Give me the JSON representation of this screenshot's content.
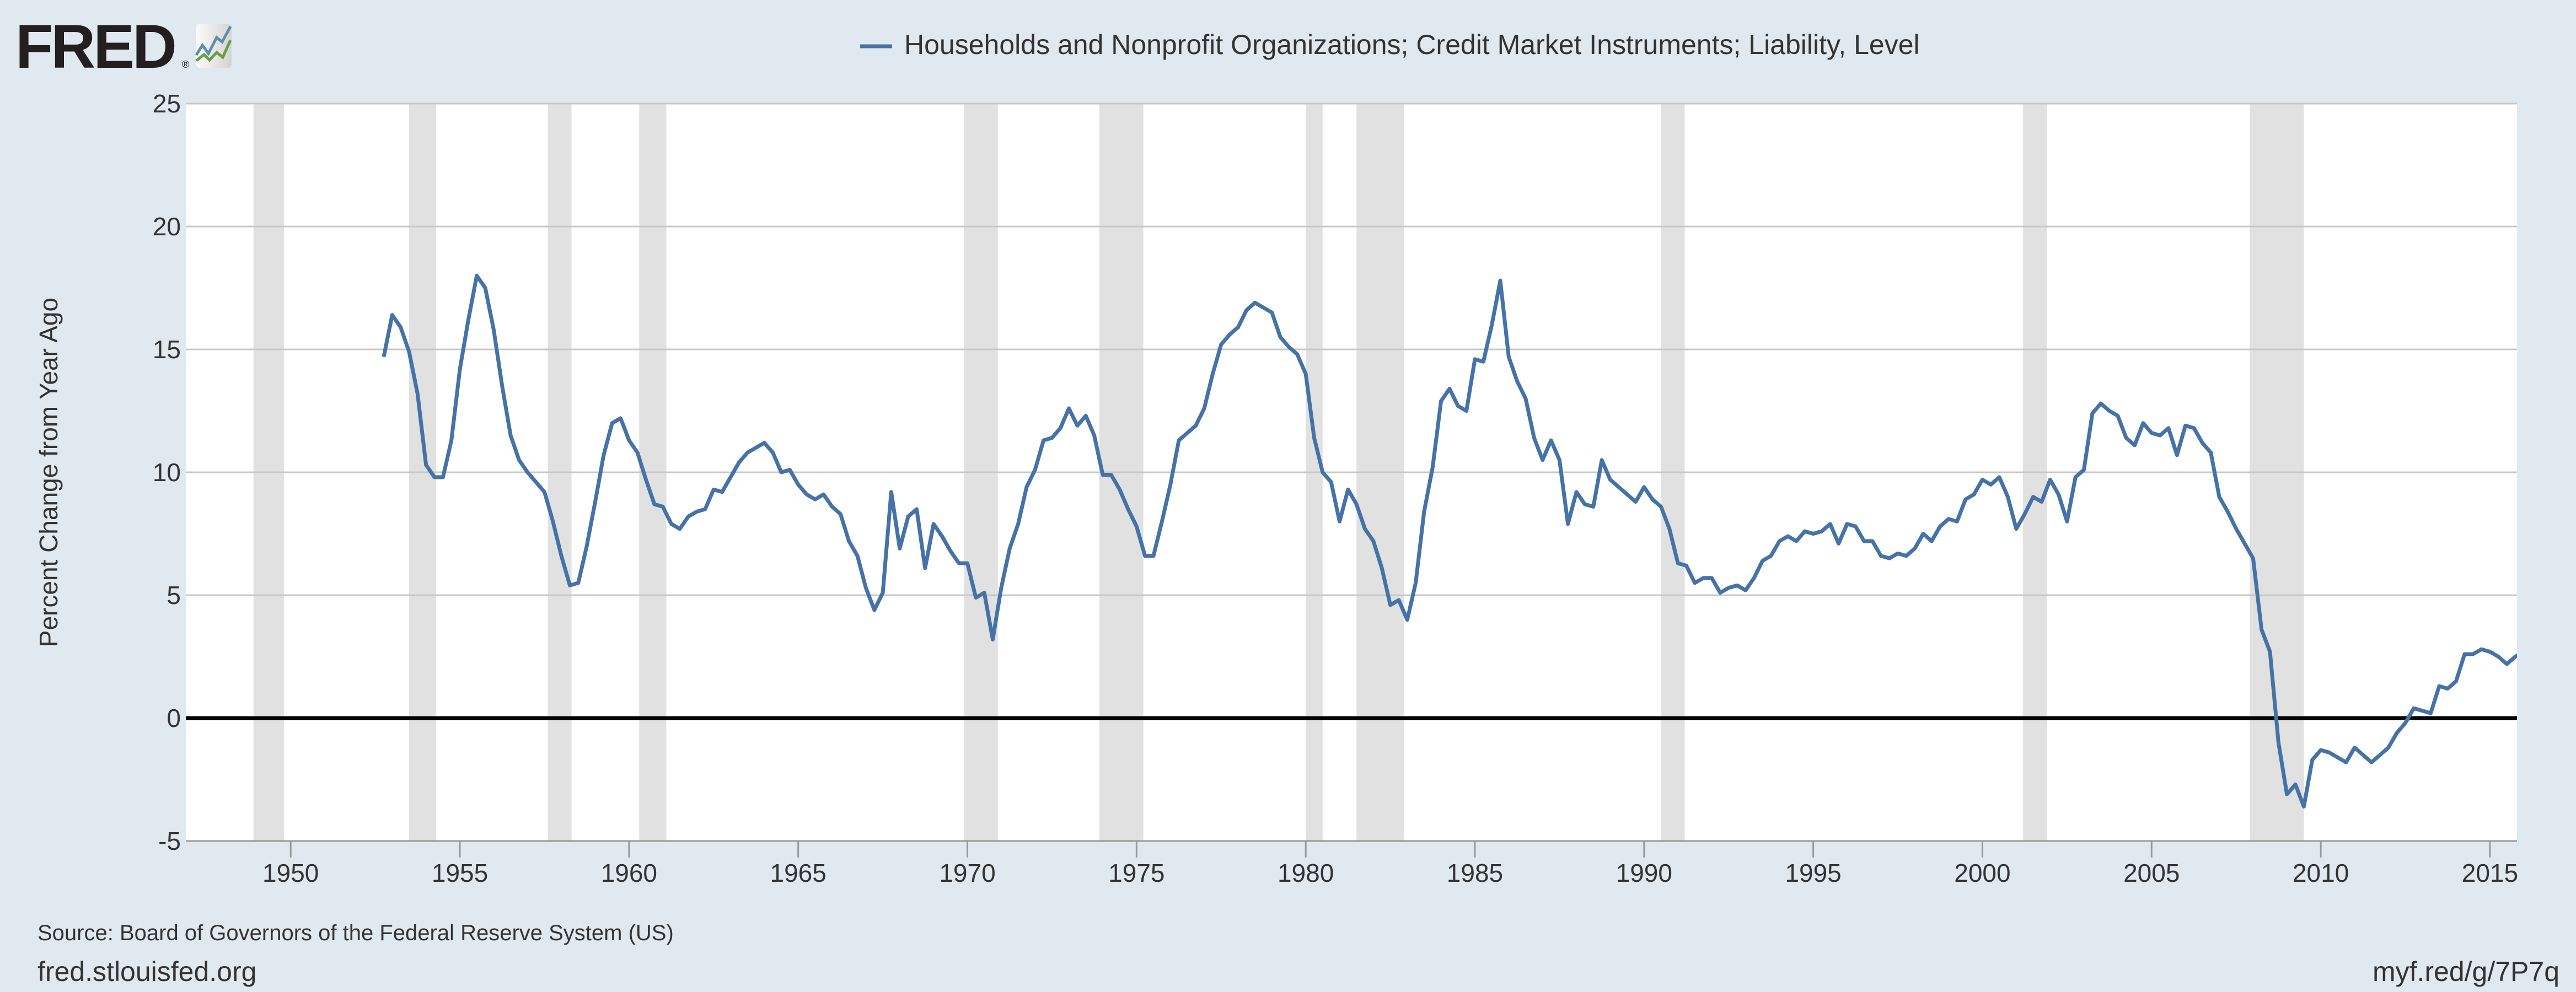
{
  "logo": {
    "text": "FRED",
    "registered": "®"
  },
  "colors": {
    "background": "#e1e9f0",
    "plot": "#ffffff",
    "series": "#4572a7",
    "recession": "#e1e1e1",
    "grid": "#c8c8c8",
    "zero_line": "#000000"
  },
  "source": "Source: Board of Governors of the Federal Reserve System (US)",
  "footer": {
    "left": "fred.stlouisfed.org",
    "right": "myf.red/g/7P7q"
  },
  "chart_data": {
    "type": "line",
    "title": "Households and Nonprofit Organizations; Credit Market Instruments; Liability, Level",
    "legend": [
      "Households and Nonprofit Organizations; Credit Market Instruments; Liability, Level"
    ],
    "legend_position": "top-center",
    "xlabel": "",
    "ylabel": "Percent Change from Year Ago",
    "xlim": [
      1946.9,
      2015.8
    ],
    "ylim": [
      -5,
      25
    ],
    "grid": true,
    "x_ticks": [
      "1950",
      "1955",
      "1960",
      "1965",
      "1970",
      "1975",
      "1980",
      "1985",
      "1990",
      "1995",
      "2000",
      "2005",
      "2010",
      "2015"
    ],
    "y_ticks": [
      "-5",
      "0",
      "5",
      "10",
      "15",
      "20",
      "25"
    ],
    "recessions": [
      [
        1948.9,
        1949.8
      ],
      [
        1953.5,
        1954.3
      ],
      [
        1957.6,
        1958.3
      ],
      [
        1960.3,
        1961.1
      ],
      [
        1969.9,
        1970.9
      ],
      [
        1973.9,
        1975.2
      ],
      [
        1980.0,
        1980.5
      ],
      [
        1981.5,
        1982.9
      ],
      [
        1990.5,
        1991.2
      ],
      [
        2001.2,
        2001.9
      ],
      [
        2007.9,
        2009.5
      ]
    ],
    "series": [
      {
        "name": "Households and Nonprofit Organizations; Credit Market Instruments; Liability, Level",
        "start": 1952.75,
        "step": 0.25,
        "values": [
          14.7,
          16.4,
          15.9,
          14.9,
          13.2,
          10.3,
          9.8,
          9.8,
          11.3,
          14.2,
          16.2,
          18.0,
          17.5,
          15.8,
          13.5,
          11.5,
          10.5,
          10.0,
          9.6,
          9.2,
          8.0,
          6.6,
          5.4,
          5.5,
          7.0,
          8.8,
          10.7,
          12.0,
          12.2,
          11.3,
          10.8,
          9.7,
          8.7,
          8.6,
          7.9,
          7.7,
          8.2,
          8.4,
          8.5,
          9.3,
          9.2,
          9.8,
          10.4,
          10.8,
          11.0,
          11.2,
          10.8,
          10.0,
          10.1,
          9.5,
          9.1,
          8.9,
          9.1,
          8.6,
          8.3,
          7.2,
          6.6,
          5.3,
          4.4,
          5.1,
          9.2,
          6.9,
          8.2,
          8.5,
          6.1,
          7.9,
          7.4,
          6.8,
          6.3,
          6.3,
          4.9,
          5.1,
          3.2,
          5.3,
          6.9,
          7.9,
          9.4,
          10.1,
          11.3,
          11.4,
          11.8,
          12.6,
          11.9,
          12.3,
          11.5,
          9.9,
          9.9,
          9.3,
          8.5,
          7.8,
          6.6,
          6.6,
          8.0,
          9.5,
          11.3,
          11.6,
          11.9,
          12.6,
          14.0,
          15.2,
          15.6,
          15.9,
          16.6,
          16.9,
          16.7,
          16.5,
          15.5,
          15.1,
          14.8,
          14.0,
          11.4,
          10.0,
          9.6,
          8.0,
          9.3,
          8.7,
          7.7,
          7.2,
          6.1,
          4.6,
          4.8,
          4.0,
          5.5,
          8.4,
          10.2,
          12.9,
          13.4,
          12.7,
          12.5,
          14.6,
          14.5,
          16.0,
          17.8,
          14.7,
          13.7,
          13.0,
          11.4,
          10.5,
          11.3,
          10.5,
          7.9,
          9.2,
          8.7,
          8.6,
          10.5,
          9.7,
          9.4,
          9.1,
          8.8,
          9.4,
          8.9,
          8.6,
          7.7,
          6.3,
          6.2,
          5.5,
          5.7,
          5.7,
          5.1,
          5.3,
          5.4,
          5.2,
          5.7,
          6.4,
          6.6,
          7.2,
          7.4,
          7.2,
          7.6,
          7.5,
          7.6,
          7.9,
          7.1,
          7.9,
          7.8,
          7.2,
          7.2,
          6.6,
          6.5,
          6.7,
          6.6,
          6.9,
          7.5,
          7.2,
          7.8,
          8.1,
          8.0,
          8.9,
          9.1,
          9.7,
          9.5,
          9.8,
          9.0,
          7.7,
          8.3,
          9.0,
          8.8,
          9.7,
          9.1,
          8.0,
          9.8,
          10.1,
          12.4,
          12.8,
          12.5,
          12.3,
          11.4,
          11.1,
          12.0,
          11.6,
          11.5,
          11.8,
          10.7,
          11.9,
          11.8,
          11.2,
          10.8,
          9.0,
          8.4,
          7.7,
          7.1,
          6.5,
          3.6,
          2.7,
          -1.0,
          -3.1,
          -2.7,
          -3.6,
          -1.7,
          -1.3,
          -1.4,
          -1.6,
          -1.8,
          -1.2,
          -1.5,
          -1.8,
          -1.5,
          -1.2,
          -0.6,
          -0.2,
          0.4,
          0.3,
          0.2,
          1.3,
          1.2,
          1.5,
          2.6,
          2.6,
          2.8,
          2.7,
          2.5,
          2.2,
          2.5,
          2.7,
          2.8
        ]
      }
    ]
  }
}
